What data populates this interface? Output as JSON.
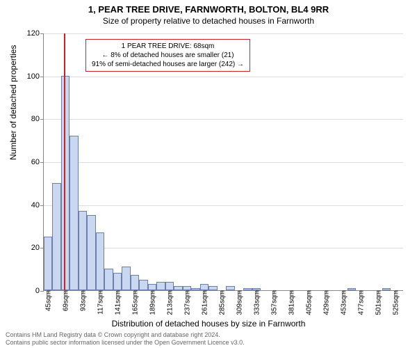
{
  "title": "1, PEAR TREE DRIVE, FARNWORTH, BOLTON, BL4 9RR",
  "subtitle": "Size of property relative to detached houses in Farnworth",
  "ylabel": "Number of detached properties",
  "xlabel": "Distribution of detached houses by size in Farnworth",
  "chart": {
    "type": "bar",
    "ylim": [
      0,
      120
    ],
    "ytick_step": 20,
    "yticks": [
      0,
      20,
      40,
      60,
      80,
      100,
      120
    ],
    "xtick_step": 24,
    "xtick_start": 45,
    "xtick_count": 21,
    "xtick_suffix": "sqm",
    "bar_color": "#c9d8f0",
    "bar_border": "#6b7fa8",
    "grid_color": "#dddddd",
    "axis_color": "#888888",
    "background": "#ffffff",
    "bars": [
      {
        "x": 45,
        "h": 25
      },
      {
        "x": 57,
        "h": 50
      },
      {
        "x": 69,
        "h": 100
      },
      {
        "x": 81,
        "h": 72
      },
      {
        "x": 93,
        "h": 37
      },
      {
        "x": 105,
        "h": 35
      },
      {
        "x": 117,
        "h": 27
      },
      {
        "x": 129,
        "h": 10
      },
      {
        "x": 141,
        "h": 8
      },
      {
        "x": 153,
        "h": 11
      },
      {
        "x": 165,
        "h": 7
      },
      {
        "x": 177,
        "h": 5
      },
      {
        "x": 189,
        "h": 3
      },
      {
        "x": 201,
        "h": 4
      },
      {
        "x": 213,
        "h": 4
      },
      {
        "x": 225,
        "h": 2
      },
      {
        "x": 237,
        "h": 2
      },
      {
        "x": 249,
        "h": 1
      },
      {
        "x": 261,
        "h": 3
      },
      {
        "x": 273,
        "h": 2
      },
      {
        "x": 285,
        "h": 0
      },
      {
        "x": 297,
        "h": 2
      },
      {
        "x": 309,
        "h": 0
      },
      {
        "x": 321,
        "h": 1
      },
      {
        "x": 333,
        "h": 1
      },
      {
        "x": 345,
        "h": 0
      },
      {
        "x": 357,
        "h": 0
      },
      {
        "x": 369,
        "h": 0
      },
      {
        "x": 381,
        "h": 0
      },
      {
        "x": 393,
        "h": 0
      },
      {
        "x": 405,
        "h": 0
      },
      {
        "x": 417,
        "h": 0
      },
      {
        "x": 429,
        "h": 0
      },
      {
        "x": 441,
        "h": 0
      },
      {
        "x": 453,
        "h": 0
      },
      {
        "x": 465,
        "h": 1
      },
      {
        "x": 477,
        "h": 0
      },
      {
        "x": 489,
        "h": 0
      },
      {
        "x": 501,
        "h": 0
      },
      {
        "x": 513,
        "h": 1
      },
      {
        "x": 525,
        "h": 0
      }
    ],
    "x_domain": [
      39,
      537
    ],
    "bar_width_data": 12,
    "marker_line": {
      "x": 68,
      "color": "#cc2222"
    }
  },
  "annotation": {
    "border_color": "#cc2222",
    "lines": [
      "1 PEAR TREE DRIVE: 68sqm",
      "← 8% of detached houses are smaller (21)",
      "91% of semi-detached houses are larger (242) →"
    ]
  },
  "footer": {
    "line1": "Contains HM Land Registry data © Crown copyright and database right 2024.",
    "line2": "Contains public sector information licensed under the Open Government Licence v3.0."
  }
}
